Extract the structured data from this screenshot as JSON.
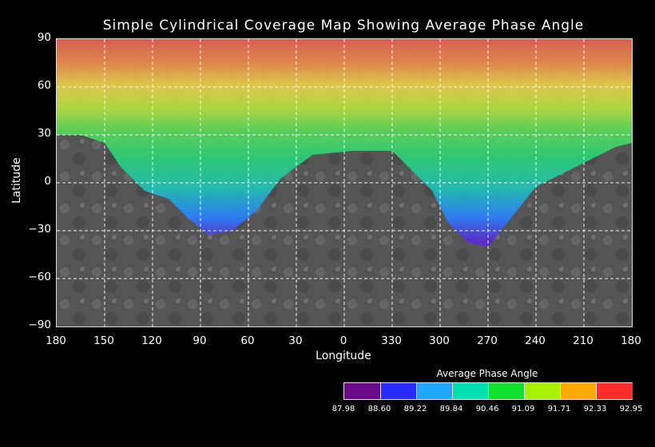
{
  "title": "Simple Cylindrical Coverage Map Showing Average Phase Angle",
  "xlabel": "Longitude",
  "ylabel": "Latitude",
  "lat_ticks": [
    "90",
    "60",
    "30",
    "0",
    "−30",
    "−60",
    "−90"
  ],
  "lon_ticks": [
    "180",
    "150",
    "120",
    "90",
    "60",
    "30",
    "0",
    "330",
    "300",
    "270",
    "240",
    "210",
    "180"
  ],
  "legend": {
    "title": "Average Phase Angle",
    "ticks": [
      "87.98",
      "88.60",
      "89.22",
      "89.84",
      "90.46",
      "91.09",
      "91.71",
      "92.33",
      "92.95"
    ],
    "colors": [
      "#6a0a8a",
      "#2a2cff",
      "#1ea7ff",
      "#00e0b0",
      "#10e030",
      "#a8f000",
      "#ffa800",
      "#ff2a2a"
    ]
  },
  "colors": {
    "background": "#000000",
    "gridline": "#ffffff",
    "terrain": "#5a5a5a"
  }
}
